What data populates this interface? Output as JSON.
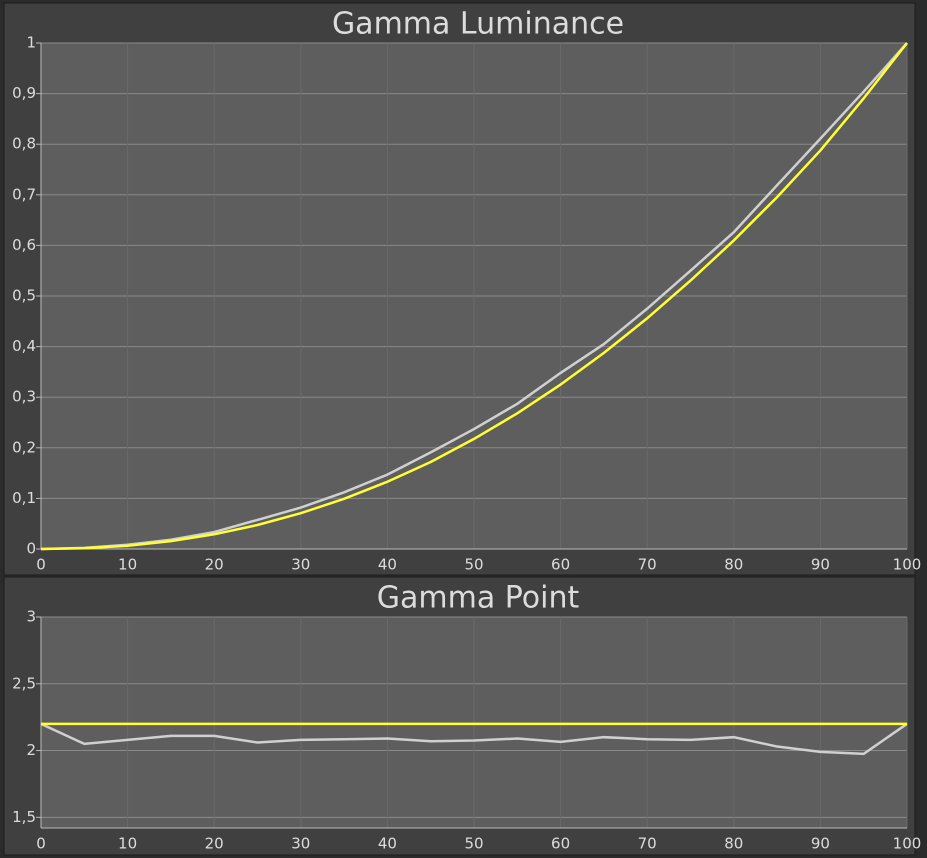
{
  "chart_data": [
    {
      "type": "line",
      "title": "Gamma Luminance",
      "x": [
        0,
        5,
        10,
        15,
        20,
        25,
        30,
        35,
        40,
        45,
        50,
        55,
        60,
        65,
        70,
        75,
        80,
        85,
        90,
        95,
        100
      ],
      "series": [
        {
          "color": "#d0d0d0",
          "values": [
            0,
            0.0022,
            0.0083,
            0.0183,
            0.0335,
            0.0575,
            0.0818,
            0.112,
            0.147,
            0.191,
            0.237,
            0.287,
            0.348,
            0.405,
            0.475,
            0.55,
            0.626,
            0.719,
            0.811,
            0.904,
            1
          ]
        },
        {
          "color": "#ffff33",
          "values": [
            0,
            0.0014,
            0.0063,
            0.0155,
            0.029,
            0.0474,
            0.0707,
            0.0992,
            0.1329,
            0.1719,
            0.2176,
            0.2681,
            0.325,
            0.3876,
            0.456,
            0.5304,
            0.6098,
            0.6955,
            0.7877,
            0.8906,
            1
          ]
        }
      ],
      "xlim": [
        0,
        100
      ],
      "xticks": [
        0,
        10,
        20,
        30,
        40,
        50,
        60,
        70,
        80,
        90,
        100
      ],
      "ylim": [
        0,
        1
      ],
      "yticks": [
        0,
        {
          "value": 0.1,
          "label": "0,1"
        },
        {
          "value": 0.2,
          "label": "0,2"
        },
        {
          "value": 0.3,
          "label": "0,3"
        },
        {
          "value": 0.4,
          "label": "0,4"
        },
        {
          "value": 0.5,
          "label": "0,5"
        },
        {
          "value": 0.6,
          "label": "0,6"
        },
        {
          "value": 0.7,
          "label": "0,7"
        },
        {
          "value": 0.8,
          "label": "0,8"
        },
        {
          "value": 0.9,
          "label": "0,9"
        },
        1
      ],
      "grid": true
    },
    {
      "type": "line",
      "title": "Gamma Point",
      "x": [
        0,
        5,
        10,
        15,
        20,
        25,
        30,
        35,
        40,
        45,
        50,
        55,
        60,
        65,
        70,
        75,
        80,
        85,
        90,
        95,
        100
      ],
      "series": [
        {
          "color": "#d0d0d0",
          "values": [
            2.2,
            2.05,
            2.08,
            2.11,
            2.11,
            2.06,
            2.08,
            2.085,
            2.09,
            2.07,
            2.075,
            2.09,
            2.065,
            2.1,
            2.085,
            2.08,
            2.1,
            2.03,
            1.99,
            1.975,
            2.2
          ]
        },
        {
          "color": "#ffff33",
          "values": [
            2.2,
            2.2,
            2.2,
            2.2,
            2.2,
            2.2,
            2.2,
            2.2,
            2.2,
            2.2,
            2.2,
            2.2,
            2.2,
            2.2,
            2.2,
            2.2,
            2.2,
            2.2,
            2.2,
            2.2,
            2.2
          ]
        }
      ],
      "xlim": [
        0,
        100
      ],
      "xticks": [
        0,
        10,
        20,
        30,
        40,
        50,
        60,
        70,
        80,
        90,
        100
      ],
      "ylim": [
        1.42,
        3
      ],
      "yticks": [
        {
          "value": 1.5,
          "label": "1,5"
        },
        2,
        {
          "value": 2.5,
          "label": "2,5"
        },
        3
      ],
      "grid": true
    }
  ]
}
